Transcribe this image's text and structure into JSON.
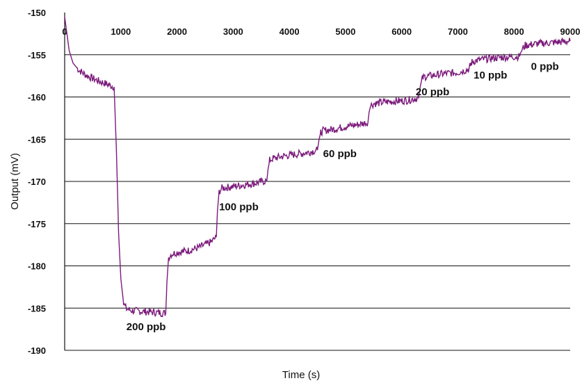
{
  "chart_data": {
    "type": "line",
    "xlabel": "Time (s)",
    "ylabel": "Output (mV)",
    "xlim": [
      0,
      9000
    ],
    "ylim": [
      -190,
      -150
    ],
    "x_ticks": [
      "0",
      "1000",
      "2000",
      "3000",
      "4000",
      "5000",
      "6000",
      "7000",
      "8000",
      "9000"
    ],
    "y_ticks": [
      "-150",
      "-155",
      "-160",
      "-165",
      "-170",
      "-175",
      "-180",
      "-185",
      "-190"
    ],
    "grid": "horizontal",
    "series_color": "#7b1a7b",
    "series": [
      {
        "x": [
          0,
          30,
          80,
          150,
          250,
          400,
          600,
          800,
          880,
          920,
          960,
          1000,
          1050,
          1100,
          1200,
          1400,
          1600,
          1800,
          1820,
          1850,
          1900,
          2000,
          2200,
          2400,
          2600,
          2700,
          2720,
          2750,
          2800,
          3000,
          3200,
          3400,
          3600,
          3620,
          3650,
          3700,
          3900,
          4100,
          4300,
          4500,
          4530,
          4560,
          4600,
          4800,
          5000,
          5200,
          5400,
          5420,
          5450,
          5500,
          5700,
          5900,
          6100,
          6300,
          6330,
          6360,
          6400,
          6600,
          6800,
          7000,
          7200,
          7230,
          7260,
          7400,
          7600,
          7800,
          8100,
          8130,
          8200,
          8400,
          8600,
          8800,
          9000
        ],
        "y": [
          -150.5,
          -152,
          -154.5,
          -156,
          -156.8,
          -157.5,
          -158.1,
          -158.6,
          -158.8,
          -166,
          -176,
          -181.5,
          -184.5,
          -185.1,
          -185.3,
          -185.4,
          -185.5,
          -185.6,
          -182,
          -179,
          -178.6,
          -178.4,
          -178.2,
          -177.8,
          -177.2,
          -176.6,
          -173.5,
          -171.2,
          -170.8,
          -170.6,
          -170.4,
          -170.2,
          -169.9,
          -168.6,
          -167.5,
          -167.3,
          -167.0,
          -166.8,
          -166.6,
          -166.3,
          -165.0,
          -164.2,
          -164.0,
          -163.8,
          -163.5,
          -163.3,
          -163.0,
          -161.8,
          -161.0,
          -160.8,
          -160.6,
          -160.5,
          -160.4,
          -160.1,
          -158.8,
          -157.9,
          -157.6,
          -157.4,
          -157.2,
          -157.1,
          -156.7,
          -156.1,
          -155.8,
          -155.6,
          -155.4,
          -155.3,
          -155.2,
          -154.5,
          -153.9,
          -153.7,
          -153.6,
          -153.5,
          -153.4
        ]
      }
    ],
    "annotations": [
      {
        "text": "200 ppb",
        "x": 1450,
        "y": -187.6
      },
      {
        "text": "100 ppb",
        "x": 3100,
        "y": -173.4
      },
      {
        "text": "60 ppb",
        "x": 4900,
        "y": -167.1
      },
      {
        "text": "20 ppb",
        "x": 6550,
        "y": -159.8
      },
      {
        "text": "10 ppb",
        "x": 7580,
        "y": -157.8
      },
      {
        "text": "0 ppb",
        "x": 8550,
        "y": -156.8
      }
    ]
  }
}
